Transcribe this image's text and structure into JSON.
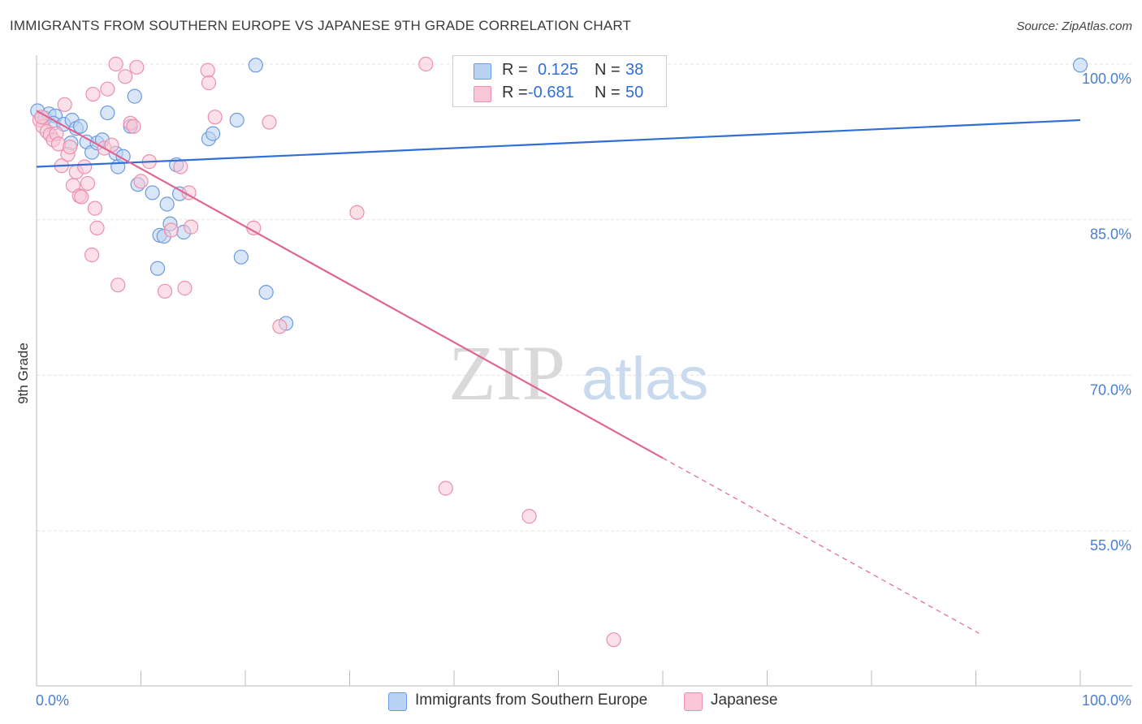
{
  "header": {
    "title": "IMMIGRANTS FROM SOUTHERN EUROPE VS JAPANESE 9TH GRADE CORRELATION CHART",
    "source": "Source: ZipAtlas.com"
  },
  "colors": {
    "blue_fill": "#b9d2f3",
    "blue_stroke": "#6b9be0",
    "blue_line": "#2f6fd6",
    "pink_fill": "#f8c6d6",
    "pink_stroke": "#ec8fae",
    "pink_line": "#e06593",
    "tick_text": "#4a7fd0",
    "grid": "#e3e3e3"
  },
  "legend": {
    "rows": [
      {
        "r_label": "R =",
        "r_value": "0.125",
        "n_label": "N =",
        "n_value": "38"
      },
      {
        "r_label": "R =",
        "r_value": "-0.681",
        "n_label": "N =",
        "n_value": "50"
      }
    ]
  },
  "bottom_legend": {
    "blue_label": "Immigrants from Southern Europe",
    "pink_label": "Japanese"
  },
  "watermark": {
    "zip": "ZIP",
    "atlas": "atlas"
  },
  "chart_data": {
    "type": "scatter",
    "title": "IMMIGRANTS FROM SOUTHERN EUROPE VS JAPANESE 9TH GRADE CORRELATION CHART",
    "xlabel": "",
    "ylabel": "9th Grade",
    "xlim": [
      0,
      100
    ],
    "ylim": [
      40,
      101.5
    ],
    "x_tick_labels": [
      "0.0%",
      "100.0%"
    ],
    "y_ticks": [
      {
        "value": 100,
        "label": "100.0%"
      },
      {
        "value": 85,
        "label": "85.0%"
      },
      {
        "value": 70,
        "label": "70.0%"
      },
      {
        "value": 55,
        "label": "55.0%"
      }
    ],
    "grid": true,
    "series": [
      {
        "name": "Immigrants from Southern Europe",
        "color": "blue",
        "points": [
          [
            0.1,
            95.5
          ],
          [
            0.8,
            94.8
          ],
          [
            1.2,
            95.2
          ],
          [
            1.8,
            95.0
          ],
          [
            1.6,
            94.3
          ],
          [
            2.6,
            94.2
          ],
          [
            3.3,
            92.4
          ],
          [
            3.4,
            94.6
          ],
          [
            3.8,
            93.8
          ],
          [
            4.2,
            94.0
          ],
          [
            4.8,
            92.5
          ],
          [
            5.3,
            91.5
          ],
          [
            5.8,
            92.4
          ],
          [
            6.3,
            92.7
          ],
          [
            6.8,
            95.3
          ],
          [
            7.6,
            91.4
          ],
          [
            7.8,
            90.1
          ],
          [
            8.3,
            91.1
          ],
          [
            9.0,
            94.0
          ],
          [
            9.4,
            96.9
          ],
          [
            9.7,
            88.4
          ],
          [
            11.1,
            87.6
          ],
          [
            11.8,
            83.5
          ],
          [
            11.6,
            80.3
          ],
          [
            12.2,
            83.4
          ],
          [
            12.5,
            86.5
          ],
          [
            12.8,
            84.6
          ],
          [
            13.4,
            90.3
          ],
          [
            13.7,
            87.5
          ],
          [
            14.1,
            83.8
          ],
          [
            16.5,
            92.8
          ],
          [
            16.9,
            93.3
          ],
          [
            19.2,
            94.6
          ],
          [
            19.6,
            81.4
          ],
          [
            21.0,
            99.9
          ],
          [
            22.0,
            78.0
          ],
          [
            23.9,
            75.0
          ],
          [
            100.0,
            99.9
          ]
        ],
        "trend": {
          "x0": 0,
          "y0": 90.1,
          "x1": 100,
          "y1": 94.6
        }
      },
      {
        "name": "Japanese",
        "color": "pink",
        "points": [
          [
            0.3,
            94.6
          ],
          [
            0.6,
            94.0
          ],
          [
            1.0,
            93.5
          ],
          [
            1.3,
            93.2
          ],
          [
            1.6,
            92.7
          ],
          [
            1.9,
            93.3
          ],
          [
            2.1,
            92.3
          ],
          [
            2.4,
            90.2
          ],
          [
            2.7,
            96.1
          ],
          [
            3.0,
            91.3
          ],
          [
            3.2,
            92.0
          ],
          [
            3.5,
            88.3
          ],
          [
            3.8,
            89.6
          ],
          [
            4.1,
            87.3
          ],
          [
            4.3,
            87.2
          ],
          [
            4.6,
            90.1
          ],
          [
            4.9,
            88.5
          ],
          [
            5.4,
            97.1
          ],
          [
            5.6,
            86.1
          ],
          [
            5.8,
            84.2
          ],
          [
            5.3,
            81.6
          ],
          [
            6.5,
            91.9
          ],
          [
            6.8,
            97.6
          ],
          [
            7.2,
            92.2
          ],
          [
            7.6,
            100.0
          ],
          [
            7.8,
            78.7
          ],
          [
            8.5,
            98.8
          ],
          [
            9.0,
            94.3
          ],
          [
            9.3,
            94.0
          ],
          [
            9.6,
            99.7
          ],
          [
            10.0,
            88.7
          ],
          [
            10.8,
            90.6
          ],
          [
            12.3,
            78.1
          ],
          [
            12.9,
            84.0
          ],
          [
            13.8,
            90.1
          ],
          [
            14.2,
            78.4
          ],
          [
            14.6,
            87.6
          ],
          [
            14.8,
            84.3
          ],
          [
            16.4,
            99.4
          ],
          [
            16.5,
            98.2
          ],
          [
            17.1,
            94.9
          ],
          [
            20.8,
            84.2
          ],
          [
            22.3,
            94.4
          ],
          [
            23.3,
            74.7
          ],
          [
            30.7,
            85.7
          ],
          [
            37.3,
            100.0
          ],
          [
            39.2,
            59.1
          ],
          [
            47.2,
            56.4
          ],
          [
            55.3,
            44.5
          ],
          [
            0.5,
            94.9
          ]
        ],
        "trend": {
          "x0": 0,
          "y0": 95.5,
          "x1": 100,
          "y1": 39.7,
          "solid_until_x": 60
        }
      }
    ]
  }
}
